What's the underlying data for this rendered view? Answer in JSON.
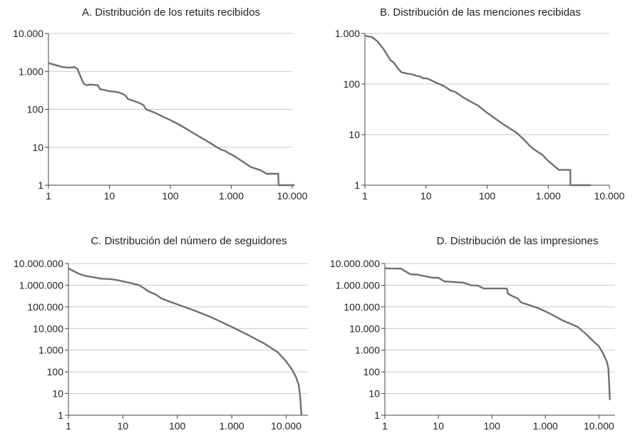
{
  "charts": [
    {
      "id": "A",
      "type": "line",
      "title": "A. Distribución de los retuits recibidos",
      "x_scale": "log",
      "y_scale": "log",
      "xlim": [
        1,
        10000
      ],
      "ylim": [
        1,
        10000
      ],
      "x_ticks": [
        1,
        10,
        100,
        1000,
        10000
      ],
      "x_tick_labels": [
        "1",
        "10",
        "100",
        "1.000",
        "10.000"
      ],
      "y_ticks": [
        1,
        10,
        100,
        1000,
        10000
      ],
      "y_tick_labels": [
        "1",
        "10",
        "100",
        "1.000",
        "10.000"
      ],
      "grid": "horizontal",
      "line_color": "#6f6f6f",
      "points": [
        [
          1,
          1650
        ],
        [
          1.3,
          1480
        ],
        [
          1.7,
          1300
        ],
        [
          2.2,
          1250
        ],
        [
          2.7,
          1300
        ],
        [
          3.0,
          1150
        ],
        [
          3.4,
          700
        ],
        [
          3.8,
          470
        ],
        [
          4.3,
          430
        ],
        [
          4.7,
          450
        ],
        [
          5.5,
          440
        ],
        [
          6.5,
          430
        ],
        [
          7.0,
          340
        ],
        [
          8.5,
          320
        ],
        [
          10,
          300
        ],
        [
          13,
          290
        ],
        [
          16,
          260
        ],
        [
          18,
          240
        ],
        [
          20,
          190
        ],
        [
          24,
          170
        ],
        [
          30,
          150
        ],
        [
          36,
          130
        ],
        [
          40,
          100
        ],
        [
          55,
          82
        ],
        [
          70,
          68
        ],
        [
          100,
          52
        ],
        [
          150,
          37
        ],
        [
          200,
          28
        ],
        [
          300,
          19
        ],
        [
          450,
          13
        ],
        [
          650,
          9
        ],
        [
          700,
          8.5
        ],
        [
          800,
          8
        ],
        [
          900,
          7
        ],
        [
          1100,
          6
        ],
        [
          1300,
          5
        ],
        [
          1600,
          4
        ],
        [
          2100,
          3
        ],
        [
          3000,
          2.5
        ],
        [
          3800,
          2
        ],
        [
          5000,
          2
        ],
        [
          5900,
          2
        ],
        [
          6000,
          1
        ],
        [
          11000,
          1
        ]
      ]
    },
    {
      "id": "B",
      "type": "line",
      "title": "B. Distribución de las menciones recibidas",
      "x_scale": "log",
      "y_scale": "log",
      "xlim": [
        1,
        10000
      ],
      "ylim": [
        1,
        1000
      ],
      "x_ticks": [
        1,
        10,
        100,
        1000,
        10000
      ],
      "x_tick_labels": [
        "1",
        "10",
        "100",
        "1.000",
        "10.000"
      ],
      "y_ticks": [
        1,
        10,
        100,
        1000
      ],
      "y_tick_labels": [
        "1",
        "10",
        "100",
        "1.000"
      ],
      "grid": "horizontal",
      "line_color": "#6f6f6f",
      "points": [
        [
          1,
          900
        ],
        [
          1.3,
          850
        ],
        [
          1.6,
          700
        ],
        [
          2.0,
          500
        ],
        [
          2.3,
          380
        ],
        [
          2.6,
          300
        ],
        [
          3.0,
          260
        ],
        [
          3.5,
          200
        ],
        [
          4.0,
          170
        ],
        [
          5.0,
          160
        ],
        [
          6.0,
          155
        ],
        [
          7.0,
          145
        ],
        [
          8.0,
          140
        ],
        [
          9.0,
          130
        ],
        [
          10,
          130
        ],
        [
          12,
          120
        ],
        [
          15,
          105
        ],
        [
          20,
          90
        ],
        [
          25,
          75
        ],
        [
          30,
          70
        ],
        [
          40,
          55
        ],
        [
          50,
          47
        ],
        [
          70,
          38
        ],
        [
          100,
          27
        ],
        [
          150,
          19
        ],
        [
          200,
          15
        ],
        [
          300,
          11
        ],
        [
          400,
          8
        ],
        [
          500,
          6
        ],
        [
          600,
          5
        ],
        [
          800,
          4
        ],
        [
          1000,
          3
        ],
        [
          1500,
          2
        ],
        [
          2300,
          2
        ],
        [
          2300,
          1
        ],
        [
          5000,
          1
        ]
      ]
    },
    {
      "id": "C",
      "type": "line",
      "title": "C. Distribución del número de seguidores",
      "x_scale": "log",
      "y_scale": "log",
      "xlim": [
        1,
        25000
      ],
      "ylim": [
        1,
        10000000
      ],
      "x_ticks": [
        1,
        10,
        100,
        1000,
        10000
      ],
      "x_tick_labels": [
        "1",
        "10",
        "100",
        "1.000",
        "10.000"
      ],
      "y_ticks": [
        1,
        10,
        100,
        1000,
        10000,
        100000,
        1000000,
        10000000
      ],
      "y_tick_labels": [
        "1",
        "10",
        "100",
        "1.000",
        "10.000",
        "100.000",
        "1.000.000",
        "10.000.000"
      ],
      "grid": "horizontal",
      "line_color": "#6f6f6f",
      "points": [
        [
          1,
          6000000
        ],
        [
          1.5,
          3500000
        ],
        [
          2,
          2700000
        ],
        [
          3,
          2300000
        ],
        [
          4,
          2000000
        ],
        [
          6,
          1900000
        ],
        [
          8,
          1700000
        ],
        [
          10,
          1500000
        ],
        [
          15,
          1200000
        ],
        [
          20,
          1000000
        ],
        [
          22,
          850000
        ],
        [
          25,
          700000
        ],
        [
          30,
          500000
        ],
        [
          40,
          380000
        ],
        [
          50,
          250000
        ],
        [
          70,
          180000
        ],
        [
          100,
          130000
        ],
        [
          200,
          70000
        ],
        [
          400,
          35000
        ],
        [
          1000,
          12000
        ],
        [
          2000,
          5000
        ],
        [
          4000,
          2000
        ],
        [
          7000,
          800
        ],
        [
          10000,
          300
        ],
        [
          13000,
          120
        ],
        [
          15000,
          60
        ],
        [
          17000,
          25
        ],
        [
          18000,
          8
        ],
        [
          18500,
          3
        ],
        [
          19000,
          1
        ]
      ]
    },
    {
      "id": "D",
      "type": "line",
      "title": "D. Distribución de las impresiones",
      "x_scale": "log",
      "y_scale": "log",
      "xlim": [
        1,
        20000
      ],
      "ylim": [
        1,
        10000000
      ],
      "x_ticks": [
        1,
        10,
        100,
        1000,
        10000
      ],
      "x_tick_labels": [
        "1",
        "10",
        "100",
        "1.000",
        "10.000"
      ],
      "y_ticks": [
        1,
        10,
        100,
        1000,
        10000,
        100000,
        1000000,
        10000000
      ],
      "y_tick_labels": [
        "1",
        "10",
        "100",
        "1.000",
        "10.000",
        "100.000",
        "1.000.000",
        "10.000.000"
      ],
      "grid": "horizontal",
      "line_color": "#6f6f6f",
      "points": [
        [
          1,
          6000000
        ],
        [
          2,
          5800000
        ],
        [
          3,
          3200000
        ],
        [
          4,
          3100000
        ],
        [
          6,
          2500000
        ],
        [
          8,
          2200000
        ],
        [
          10,
          2200000
        ],
        [
          13,
          1500000
        ],
        [
          20,
          1400000
        ],
        [
          30,
          1300000
        ],
        [
          40,
          1000000
        ],
        [
          55,
          950000
        ],
        [
          70,
          700000
        ],
        [
          100,
          700000
        ],
        [
          190,
          700000
        ],
        [
          200,
          400000
        ],
        [
          250,
          300000
        ],
        [
          300,
          250000
        ],
        [
          350,
          160000
        ],
        [
          500,
          120000
        ],
        [
          800,
          80000
        ],
        [
          1200,
          50000
        ],
        [
          2000,
          25000
        ],
        [
          4000,
          12000
        ],
        [
          6000,
          5000
        ],
        [
          8000,
          2500
        ],
        [
          10000,
          1500
        ],
        [
          12000,
          700
        ],
        [
          14000,
          300
        ],
        [
          15000,
          150
        ],
        [
          15500,
          30
        ],
        [
          16000,
          5
        ]
      ]
    }
  ]
}
